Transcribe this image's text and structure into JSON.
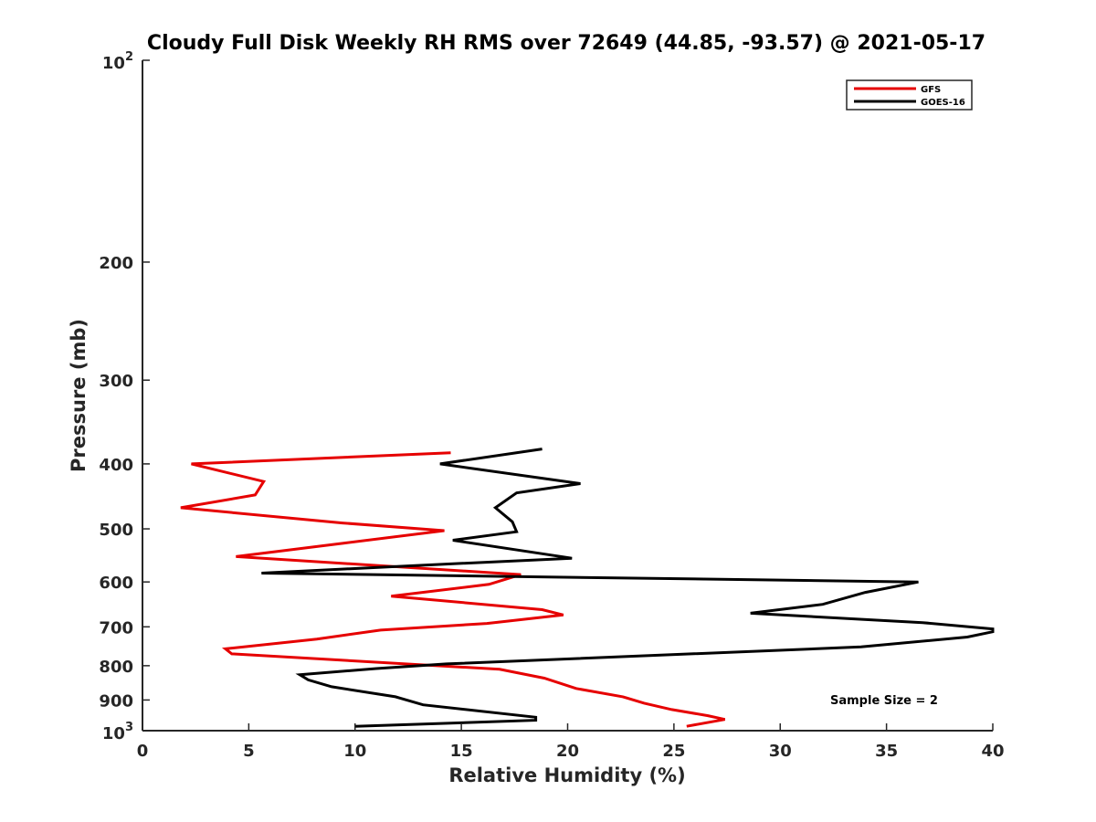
{
  "chart_data": {
    "type": "line",
    "title": "Cloudy Full Disk Weekly RH RMS over 72649 (44.85, -93.57) @ 2021-05-17",
    "xlabel": "Relative Humidity (%)",
    "ylabel": "Pressure (mb)",
    "xlim": [
      0,
      40
    ],
    "ylim": [
      100,
      1000
    ],
    "y_scale": "log",
    "y_reversed": true,
    "xticks": [
      "0",
      "5",
      "10",
      "15",
      "20",
      "25",
      "30",
      "35",
      "40"
    ],
    "yticks": [
      {
        "value": 100,
        "base": "10",
        "exp": "2"
      },
      {
        "value": 200,
        "label": "200"
      },
      {
        "value": 300,
        "label": "300"
      },
      {
        "value": 400,
        "label": "400"
      },
      {
        "value": 500,
        "label": "500"
      },
      {
        "value": 600,
        "label": "600"
      },
      {
        "value": 700,
        "label": "700"
      },
      {
        "value": 800,
        "label": "800"
      },
      {
        "value": 900,
        "label": "900"
      },
      {
        "value": 1000,
        "base": "10",
        "exp": "3"
      }
    ],
    "grid": false,
    "legend_position": "top-right",
    "annotation": "Sample Size = 2",
    "series": [
      {
        "name": "GFS",
        "color": "#e60000",
        "points": [
          [
            14.5,
            385
          ],
          [
            2.3,
            400
          ],
          [
            5.7,
            425
          ],
          [
            5.3,
            445
          ],
          [
            1.8,
            465
          ],
          [
            9.4,
            490
          ],
          [
            14.2,
            503
          ],
          [
            9.5,
            525
          ],
          [
            4.4,
            550
          ],
          [
            17.8,
            585
          ],
          [
            16.3,
            605
          ],
          [
            11.7,
            630
          ],
          [
            18.8,
            660
          ],
          [
            19.8,
            672
          ],
          [
            16.2,
            692
          ],
          [
            11.2,
            708
          ],
          [
            8.2,
            730
          ],
          [
            3.9,
            755
          ],
          [
            4.2,
            768
          ],
          [
            16.8,
            810
          ],
          [
            18.9,
            835
          ],
          [
            20.4,
            865
          ],
          [
            22.6,
            890
          ],
          [
            23.6,
            910
          ],
          [
            24.9,
            930
          ],
          [
            26.6,
            950
          ],
          [
            27.4,
            962
          ],
          [
            25.6,
            985
          ]
        ]
      },
      {
        "name": "GOES-16",
        "color": "#000000",
        "points": [
          [
            18.8,
            380
          ],
          [
            14.0,
            400
          ],
          [
            20.6,
            428
          ],
          [
            17.6,
            442
          ],
          [
            16.6,
            465
          ],
          [
            17.4,
            488
          ],
          [
            17.6,
            505
          ],
          [
            14.6,
            520
          ],
          [
            20.2,
            553
          ],
          [
            12.4,
            568
          ],
          [
            5.6,
            582
          ],
          [
            36.5,
            600
          ],
          [
            34.0,
            622
          ],
          [
            32.0,
            648
          ],
          [
            28.6,
            668
          ],
          [
            36.7,
            690
          ],
          [
            40.0,
            705
          ],
          [
            40.0,
            712
          ],
          [
            38.8,
            725
          ],
          [
            33.8,
            750
          ],
          [
            14.3,
            795
          ],
          [
            11.0,
            808
          ],
          [
            7.4,
            825
          ],
          [
            7.8,
            840
          ],
          [
            8.9,
            860
          ],
          [
            11.9,
            890
          ],
          [
            13.2,
            915
          ],
          [
            18.5,
            955
          ],
          [
            18.5,
            965
          ],
          [
            10.0,
            985
          ]
        ]
      }
    ]
  }
}
